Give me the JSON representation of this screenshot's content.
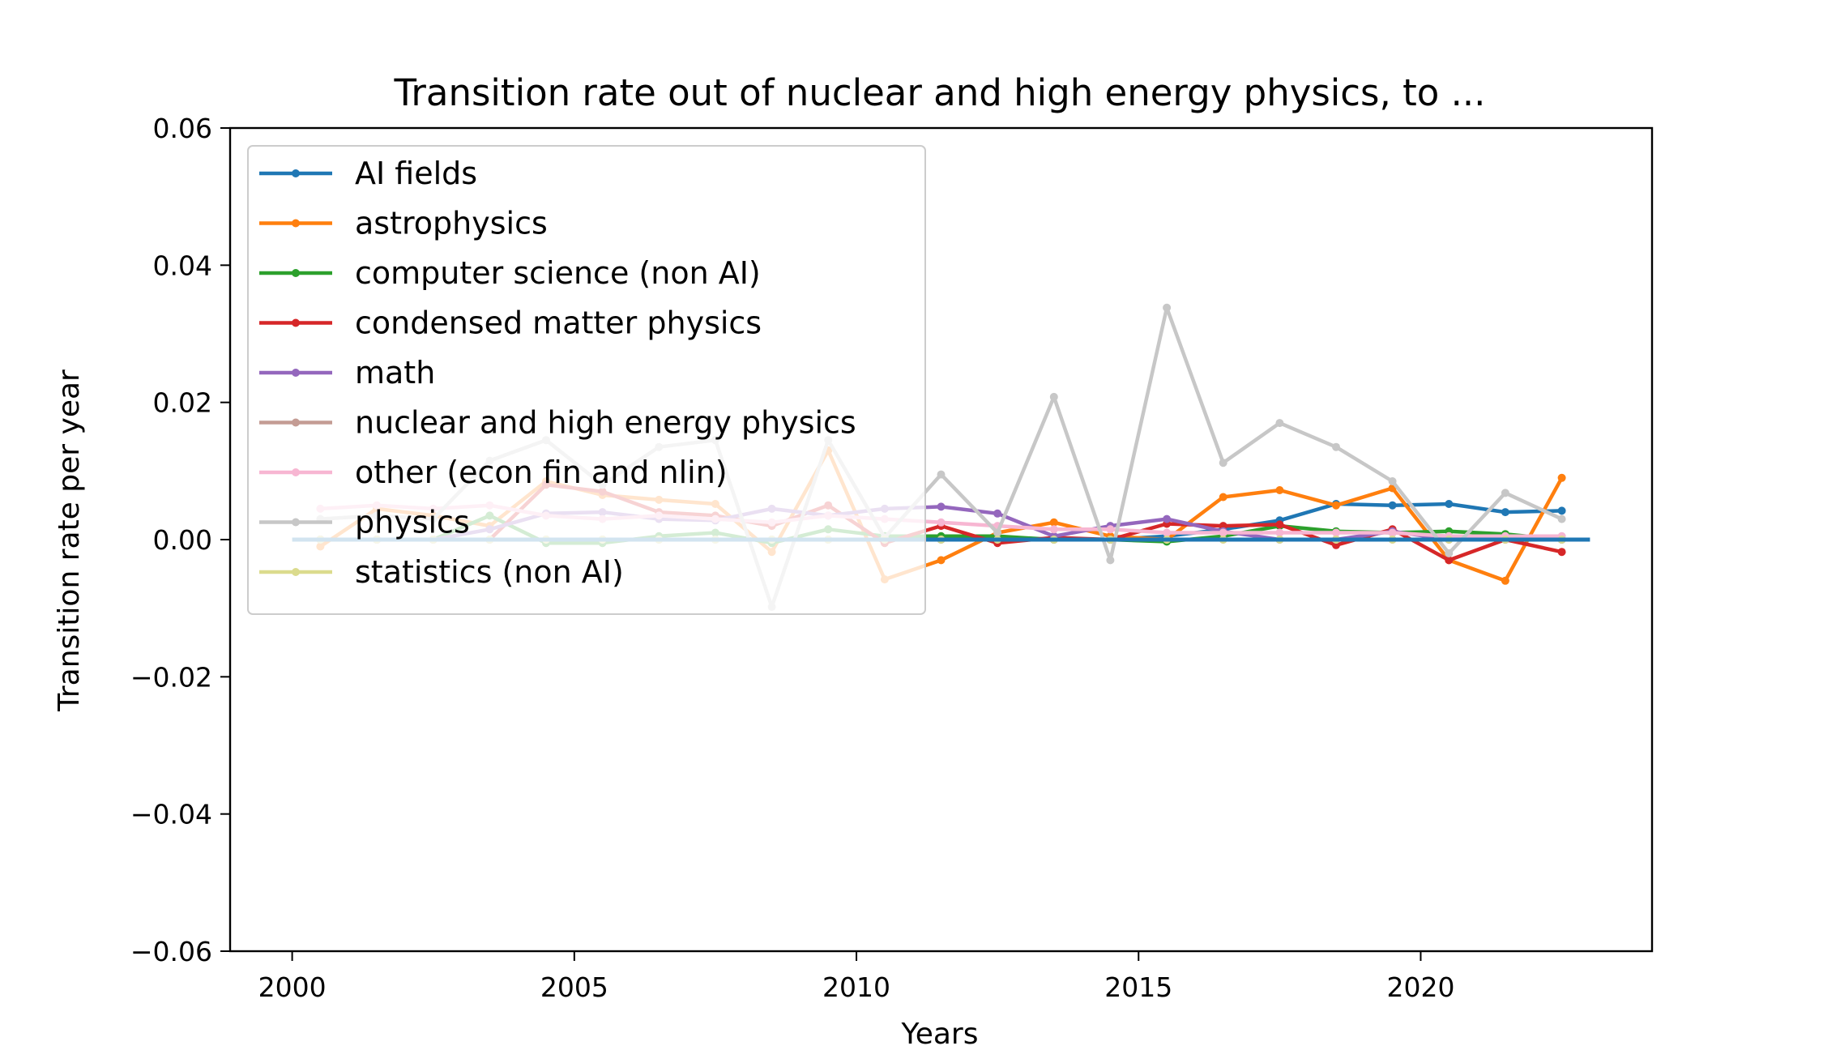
{
  "chart_data": {
    "type": "line",
    "title": "Transition rate out of nuclear and high energy physics, to ...",
    "xlabel": "Years",
    "ylabel": "Transition rate per year",
    "xlim": [
      1998.9,
      2024.1
    ],
    "ylim": [
      -0.06,
      0.06
    ],
    "xticks": [
      2000,
      2005,
      2010,
      2015,
      2020
    ],
    "yticks": [
      -0.06,
      -0.04,
      -0.02,
      0.0,
      0.02,
      0.04,
      0.06
    ],
    "ytick_labels": [
      "−0.06",
      "−0.04",
      "−0.02",
      "0.00",
      "0.02",
      "0.04",
      "0.06"
    ],
    "grid": false,
    "legend": "upper left",
    "legend_alpha": 0.8,
    "baseline": {
      "x": [
        2000,
        2023
      ],
      "y": 0.0,
      "color": "#1f77b4"
    },
    "x": [
      2000.5,
      2001.5,
      2002.5,
      2003.5,
      2004.5,
      2005.5,
      2006.5,
      2007.5,
      2008.5,
      2009.5,
      2010.5,
      2011.5,
      2012.5,
      2013.5,
      2014.5,
      2015.5,
      2016.5,
      2017.5,
      2018.5,
      2019.5,
      2020.5,
      2021.5,
      2022.5
    ],
    "series": [
      {
        "name": "AI fields",
        "color": "#1f77b4",
        "values": [
          0,
          0,
          0,
          0,
          0,
          0,
          0,
          0,
          0,
          0,
          0,
          0,
          0,
          0,
          0,
          0.0005,
          0.0015,
          0.0028,
          0.0052,
          0.005,
          0.0052,
          0.004,
          0.0042
        ]
      },
      {
        "name": "astrophysics",
        "color": "#ff7f0e",
        "values": [
          -0.001,
          0.0045,
          0.0035,
          0.002,
          0.0085,
          0.0065,
          0.0058,
          0.0052,
          -0.0018,
          0.013,
          -0.0058,
          -0.003,
          0.001,
          0.0025,
          0.0005,
          0.0,
          0.0062,
          0.0072,
          0.005,
          0.0075,
          -0.003,
          -0.006,
          0.009
        ]
      },
      {
        "name": "computer science (non AI)",
        "color": "#2ca02c",
        "values": [
          0,
          0,
          0,
          0.0035,
          -0.0005,
          -0.0005,
          0.0005,
          0.001,
          -0.0005,
          0.0015,
          0.0005,
          0.0005,
          0.0005,
          0.0,
          0.0,
          -0.0003,
          0.0005,
          0.002,
          0.0012,
          0.001,
          0.0012,
          0.0008,
          0.0
        ]
      },
      {
        "name": "condensed matter physics",
        "color": "#d62728",
        "values": [
          0,
          0,
          0,
          0,
          0.008,
          0.007,
          0.004,
          0.0035,
          0.002,
          0.005,
          -0.0005,
          0.002,
          -0.0005,
          0.0003,
          0.0,
          0.0023,
          0.002,
          0.0022,
          -0.0008,
          0.0015,
          -0.003,
          0.0,
          -0.0018
        ]
      },
      {
        "name": "math",
        "color": "#9467bd",
        "values": [
          0,
          0,
          0,
          0.0015,
          0.0038,
          0.004,
          0.003,
          0.0028,
          0.0045,
          0.0035,
          0.0045,
          0.0048,
          0.0038,
          0.0005,
          0.002,
          0.003,
          0.0012,
          0.0,
          0.0,
          0.0012,
          0.0,
          0.0,
          0.0
        ]
      },
      {
        "name": "nuclear and high energy physics",
        "color": "#c49c94",
        "values": [
          0,
          0,
          0,
          0,
          0,
          0,
          0,
          0,
          0,
          0,
          0,
          0,
          0,
          0,
          0,
          0,
          0,
          0,
          0,
          0,
          0,
          0,
          0
        ]
      },
      {
        "name": "other (econ fin and nlin)",
        "color": "#f7b6d2",
        "values": [
          0.0045,
          0.005,
          0.0045,
          0.005,
          0.0035,
          0.003,
          0.0035,
          0.003,
          0.0025,
          0.0035,
          0.003,
          0.0025,
          0.002,
          0.0015,
          0.0015,
          0.001,
          0.001,
          0.001,
          0.001,
          0.001,
          0.0005,
          0.0005,
          0.0005
        ]
      },
      {
        "name": "physics",
        "color": "#c7c7c7",
        "values": [
          0.003,
          0.0035,
          0.003,
          0.0115,
          0.0145,
          0.008,
          0.0135,
          0.0145,
          -0.0098,
          0.0145,
          0.0003,
          0.0095,
          0.001,
          0.0208,
          -0.003,
          0.0338,
          0.0112,
          0.017,
          0.0135,
          0.0085,
          -0.002,
          0.0068,
          0.003
        ]
      },
      {
        "name": "statistics (non AI)",
        "color": "#dbdb8d",
        "values": [
          0,
          0,
          0,
          0,
          0,
          0,
          0,
          0,
          0,
          0,
          0,
          0,
          0,
          0,
          0,
          0,
          0,
          0,
          0,
          0,
          0,
          0,
          0
        ]
      }
    ]
  }
}
